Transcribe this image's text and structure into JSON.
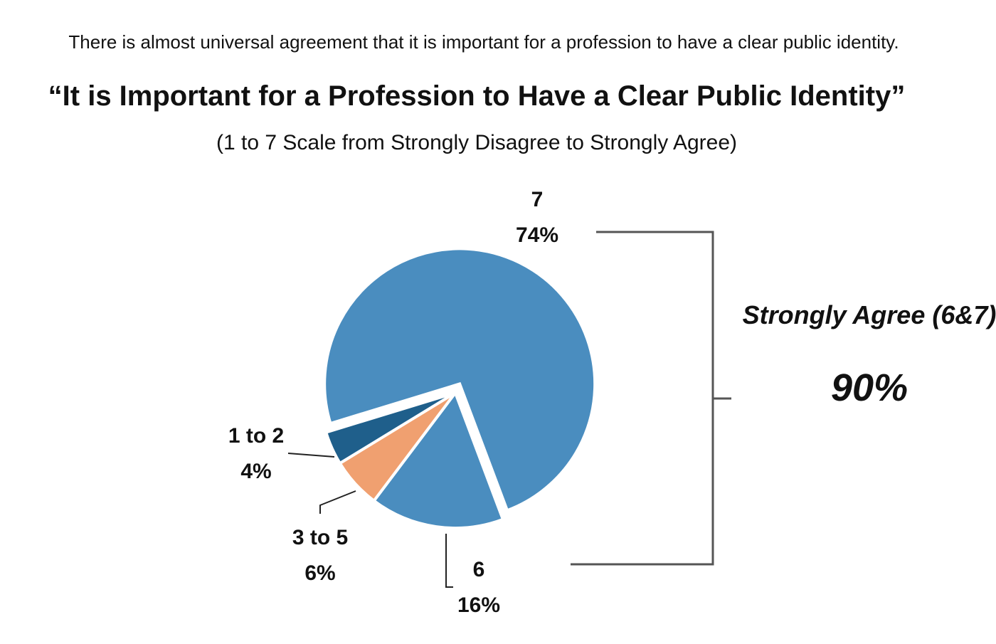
{
  "chart_data": {
    "type": "pie",
    "intro": "There is almost universal agreement that it is important for a profession to have a clear public identity.",
    "title": "“It is Important for a Profession to Have a Clear Public Identity”",
    "subtitle": "(1 to 7 Scale from Strongly Disagree to Strongly Agree)",
    "categories": [
      "7",
      "6",
      "3 to 5",
      "1 to 2"
    ],
    "values": [
      74,
      16,
      6,
      4
    ],
    "value_labels": [
      "74%",
      "16%",
      "6%",
      "4%"
    ],
    "colors": [
      "#4a8dbf",
      "#4a8dbf",
      "#f0a070",
      "#1f5f8b"
    ],
    "annotations": [
      "Strongly Agree (6&7)",
      "90%"
    ]
  }
}
